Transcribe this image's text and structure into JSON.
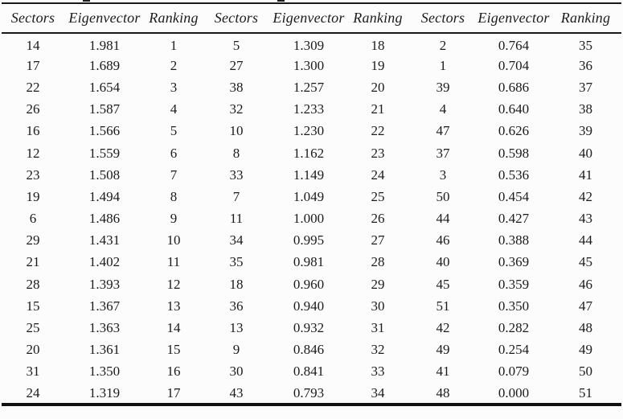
{
  "page": {
    "background": "#fcfcfc",
    "text_color": "#1b1b1b",
    "rule_color": "#1a1a1a"
  },
  "table": {
    "columns": [
      "Sectors",
      "Eigenvector",
      "Ranking",
      "Sectors",
      "Eigenvector",
      "Ranking",
      "Sectors",
      "Eigenvector",
      "Ranking"
    ],
    "rows": [
      [
        "14",
        "1.981",
        "1",
        "5",
        "1.309",
        "18",
        "2",
        "0.764",
        "35"
      ],
      [
        "17",
        "1.689",
        "2",
        "27",
        "1.300",
        "19",
        "1",
        "0.704",
        "36"
      ],
      [
        "22",
        "1.654",
        "3",
        "38",
        "1.257",
        "20",
        "39",
        "0.686",
        "37"
      ],
      [
        "26",
        "1.587",
        "4",
        "32",
        "1.233",
        "21",
        "4",
        "0.640",
        "38"
      ],
      [
        "16",
        "1.566",
        "5",
        "10",
        "1.230",
        "22",
        "47",
        "0.626",
        "39"
      ],
      [
        "12",
        "1.559",
        "6",
        "8",
        "1.162",
        "23",
        "37",
        "0.598",
        "40"
      ],
      [
        "23",
        "1.508",
        "7",
        "33",
        "1.149",
        "24",
        "3",
        "0.536",
        "41"
      ],
      [
        "19",
        "1.494",
        "8",
        "7",
        "1.049",
        "25",
        "50",
        "0.454",
        "42"
      ],
      [
        "6",
        "1.486",
        "9",
        "11",
        "1.000",
        "26",
        "44",
        "0.427",
        "43"
      ],
      [
        "29",
        "1.431",
        "10",
        "34",
        "0.995",
        "27",
        "46",
        "0.388",
        "44"
      ],
      [
        "21",
        "1.402",
        "11",
        "35",
        "0.981",
        "28",
        "40",
        "0.369",
        "45"
      ],
      [
        "28",
        "1.393",
        "12",
        "18",
        "0.960",
        "29",
        "45",
        "0.359",
        "46"
      ],
      [
        "15",
        "1.367",
        "13",
        "36",
        "0.940",
        "30",
        "51",
        "0.350",
        "47"
      ],
      [
        "25",
        "1.363",
        "14",
        "13",
        "0.932",
        "31",
        "42",
        "0.282",
        "48"
      ],
      [
        "20",
        "1.361",
        "15",
        "9",
        "0.846",
        "32",
        "49",
        "0.254",
        "49"
      ],
      [
        "31",
        "1.350",
        "16",
        "30",
        "0.841",
        "33",
        "41",
        "0.079",
        "50"
      ],
      [
        "24",
        "1.319",
        "17",
        "43",
        "0.793",
        "34",
        "48",
        "0.000",
        "51"
      ]
    ]
  }
}
